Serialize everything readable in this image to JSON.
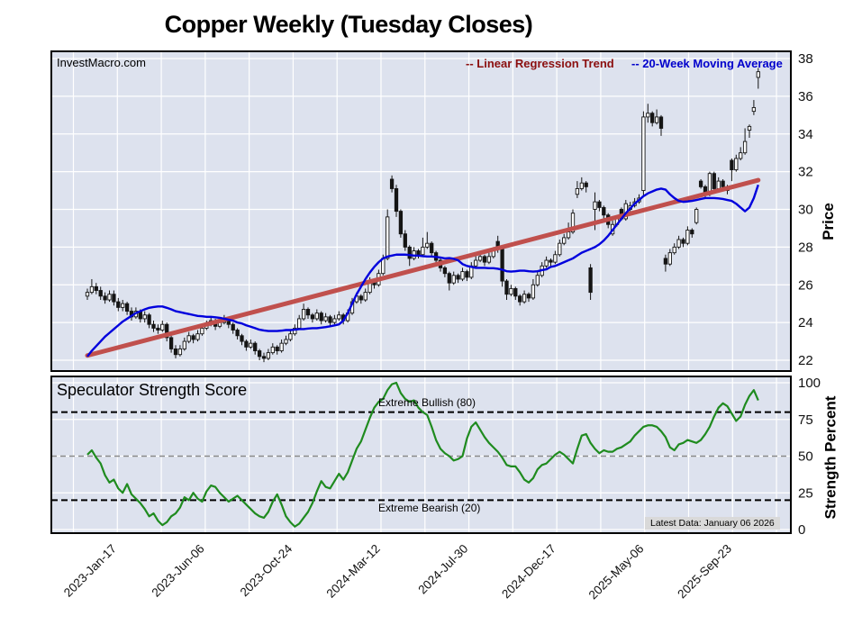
{
  "title": "Copper Weekly (Tuesday Closes)",
  "watermark": "InvestMacro.com",
  "legend": {
    "regression_label": "-- Linear Regression Trend",
    "regression_color": "#8b0f0f",
    "ma_label": "-- 20-Week Moving Average",
    "ma_color": "#0000cc"
  },
  "price_axis": {
    "label": "Price",
    "ticks": [
      22,
      24,
      26,
      28,
      30,
      32,
      34,
      36,
      38
    ]
  },
  "strength_axis": {
    "label": "Strength Percent",
    "ticks": [
      0,
      25,
      50,
      75,
      100
    ]
  },
  "strength_panel": {
    "title": "Speculator Strength Score",
    "bullish_label": "Extreme Bullish (80)",
    "bearish_label": "Extreme Bearish (20)"
  },
  "footnote": "Latest Data: January 06 2026",
  "colors": {
    "panel_bg": "#dde2ee",
    "grid": "#ffffff",
    "regression_line": "#c0504d",
    "ma_line": "#0000dd",
    "strength_line": "#1f8b1f",
    "candle_dark": "#141414",
    "candle_light": "#ffffff",
    "threshold_dash": "#000000",
    "mid_dash": "#8a8a8a",
    "tick_text": "#111111"
  },
  "chart_data": {
    "type": "candlestick",
    "title": "Copper Weekly (Tuesday Closes)",
    "x_tick_labels": [
      "2023-Jan-17",
      "2023-Jun-06",
      "2023-Oct-24",
      "2024-Mar-12",
      "2024-Jul-30",
      "2024-Dec-17",
      "2025-May-06",
      "2025-Sep-23"
    ],
    "price_ticks": [
      22,
      24,
      26,
      28,
      30,
      32,
      34,
      36,
      38
    ],
    "price_ylim": [
      21.4,
      38.4
    ],
    "ohlc_note": "weekly Tuesday-close candles, oldest to latest [open,high,low,close]",
    "ohlc": [
      [
        25.4,
        25.8,
        25.2,
        25.6
      ],
      [
        25.6,
        26.3,
        25.5,
        25.9
      ],
      [
        25.9,
        26.1,
        25.5,
        25.7
      ],
      [
        25.7,
        25.9,
        25.2,
        25.4
      ],
      [
        25.4,
        25.6,
        25.0,
        25.2
      ],
      [
        25.2,
        25.7,
        25.1,
        25.5
      ],
      [
        25.5,
        25.7,
        24.9,
        25.1
      ],
      [
        25.1,
        25.3,
        24.6,
        24.8
      ],
      [
        24.8,
        25.2,
        24.6,
        25.0
      ],
      [
        25.0,
        25.1,
        24.4,
        24.6
      ],
      [
        24.6,
        24.8,
        24.1,
        24.3
      ],
      [
        24.3,
        24.8,
        24.2,
        24.6
      ],
      [
        24.6,
        24.7,
        24.0,
        24.2
      ],
      [
        24.2,
        24.6,
        24.0,
        24.4
      ],
      [
        24.4,
        24.5,
        23.7,
        23.9
      ],
      [
        23.9,
        24.1,
        23.5,
        23.7
      ],
      [
        23.7,
        23.9,
        23.4,
        23.6
      ],
      [
        23.6,
        24.1,
        23.5,
        23.9
      ],
      [
        23.9,
        24.0,
        23.0,
        23.2
      ],
      [
        23.2,
        23.3,
        22.4,
        22.6
      ],
      [
        22.6,
        22.8,
        22.1,
        22.3
      ],
      [
        22.3,
        22.8,
        22.2,
        22.6
      ],
      [
        22.6,
        23.2,
        22.5,
        23.0
      ],
      [
        23.0,
        23.5,
        22.9,
        23.3
      ],
      [
        23.3,
        23.4,
        22.9,
        23.1
      ],
      [
        23.1,
        23.6,
        23.0,
        23.4
      ],
      [
        23.4,
        23.9,
        23.3,
        23.7
      ],
      [
        23.7,
        24.1,
        23.6,
        23.9
      ],
      [
        23.9,
        24.3,
        23.8,
        24.1
      ],
      [
        24.1,
        24.2,
        23.6,
        23.8
      ],
      [
        23.8,
        24.2,
        23.7,
        24.0
      ],
      [
        24.0,
        24.4,
        23.9,
        24.2
      ],
      [
        24.2,
        24.3,
        23.7,
        23.9
      ],
      [
        23.9,
        24.0,
        23.4,
        23.6
      ],
      [
        23.6,
        23.7,
        23.1,
        23.3
      ],
      [
        23.3,
        23.4,
        22.8,
        23.0
      ],
      [
        23.0,
        23.1,
        22.5,
        22.7
      ],
      [
        22.7,
        23.1,
        22.6,
        22.9
      ],
      [
        22.9,
        23.0,
        22.3,
        22.5
      ],
      [
        22.5,
        22.6,
        22.0,
        22.2
      ],
      [
        22.2,
        22.4,
        21.9,
        22.1
      ],
      [
        22.1,
        22.6,
        22.0,
        22.4
      ],
      [
        22.4,
        22.9,
        22.3,
        22.7
      ],
      [
        22.7,
        22.8,
        22.3,
        22.5
      ],
      [
        22.5,
        23.1,
        22.4,
        22.9
      ],
      [
        22.9,
        23.3,
        22.8,
        23.1
      ],
      [
        23.1,
        23.6,
        23.0,
        23.4
      ],
      [
        23.4,
        23.9,
        23.3,
        23.7
      ],
      [
        23.7,
        24.4,
        23.6,
        24.2
      ],
      [
        24.2,
        25.0,
        24.1,
        24.7
      ],
      [
        24.7,
        24.8,
        24.2,
        24.4
      ],
      [
        24.4,
        24.5,
        24.0,
        24.2
      ],
      [
        24.2,
        24.7,
        24.1,
        24.5
      ],
      [
        24.5,
        24.6,
        23.9,
        24.1
      ],
      [
        24.1,
        24.5,
        24.0,
        24.3
      ],
      [
        24.3,
        24.4,
        23.8,
        24.0
      ],
      [
        24.0,
        24.4,
        23.9,
        24.2
      ],
      [
        24.2,
        24.6,
        24.1,
        24.4
      ],
      [
        24.4,
        24.5,
        23.9,
        24.1
      ],
      [
        24.1,
        24.7,
        24.0,
        24.5
      ],
      [
        24.5,
        25.3,
        24.4,
        25.1
      ],
      [
        25.1,
        25.6,
        25.0,
        25.4
      ],
      [
        25.4,
        25.5,
        25.0,
        25.2
      ],
      [
        25.2,
        25.8,
        25.1,
        25.6
      ],
      [
        25.6,
        26.4,
        25.5,
        26.2
      ],
      [
        26.2,
        26.3,
        25.8,
        26.0
      ],
      [
        26.0,
        26.8,
        25.9,
        26.6
      ],
      [
        26.6,
        27.6,
        26.5,
        27.4
      ],
      [
        27.4,
        30.0,
        27.3,
        29.6
      ],
      [
        31.6,
        31.8,
        30.9,
        31.1
      ],
      [
        31.1,
        31.3,
        29.6,
        29.9
      ],
      [
        29.9,
        30.0,
        28.5,
        28.7
      ],
      [
        28.7,
        28.9,
        27.8,
        28.0
      ],
      [
        28.0,
        28.1,
        27.0,
        27.4
      ],
      [
        27.4,
        28.0,
        27.3,
        27.8
      ],
      [
        27.8,
        27.9,
        27.4,
        27.6
      ],
      [
        27.6,
        28.5,
        27.5,
        28.0
      ],
      [
        28.0,
        28.8,
        27.9,
        28.2
      ],
      [
        28.2,
        28.3,
        27.5,
        27.7
      ],
      [
        27.7,
        27.8,
        27.1,
        27.3
      ],
      [
        27.3,
        27.4,
        26.7,
        26.9
      ],
      [
        26.9,
        27.0,
        26.4,
        26.6
      ],
      [
        26.6,
        26.7,
        25.7,
        26.1
      ],
      [
        26.1,
        26.7,
        26.0,
        26.5
      ],
      [
        26.5,
        26.6,
        26.1,
        26.3
      ],
      [
        26.3,
        26.9,
        26.2,
        26.7
      ],
      [
        26.7,
        26.8,
        26.2,
        26.4
      ],
      [
        26.4,
        27.2,
        26.3,
        27.0
      ],
      [
        27.0,
        27.7,
        26.9,
        27.3
      ],
      [
        27.3,
        27.8,
        27.2,
        27.5
      ],
      [
        27.5,
        27.6,
        27.0,
        27.2
      ],
      [
        27.2,
        27.7,
        27.1,
        27.5
      ],
      [
        27.5,
        28.0,
        27.4,
        27.8
      ],
      [
        28.3,
        28.6,
        27.7,
        27.9
      ],
      [
        27.9,
        28.0,
        25.9,
        26.2
      ],
      [
        26.2,
        26.3,
        25.2,
        25.5
      ],
      [
        25.5,
        26.0,
        25.4,
        25.8
      ],
      [
        25.8,
        25.9,
        25.2,
        25.4
      ],
      [
        25.4,
        25.5,
        24.9,
        25.1
      ],
      [
        25.1,
        25.7,
        25.0,
        25.5
      ],
      [
        25.5,
        25.6,
        25.1,
        25.3
      ],
      [
        25.3,
        26.3,
        25.2,
        26.0
      ],
      [
        26.0,
        26.7,
        25.9,
        26.5
      ],
      [
        26.5,
        27.2,
        26.4,
        27.0
      ],
      [
        27.0,
        27.5,
        26.9,
        27.3
      ],
      [
        27.3,
        27.4,
        27.0,
        27.2
      ],
      [
        27.2,
        27.8,
        27.1,
        27.6
      ],
      [
        27.6,
        28.4,
        27.5,
        28.2
      ],
      [
        28.2,
        28.7,
        28.1,
        28.5
      ],
      [
        28.5,
        29.3,
        28.4,
        28.8
      ],
      [
        28.8,
        30.0,
        28.7,
        29.8
      ],
      [
        30.8,
        31.5,
        30.6,
        31.1
      ],
      [
        31.1,
        31.7,
        31.0,
        31.4
      ],
      [
        31.4,
        31.5,
        30.9,
        31.2
      ],
      [
        26.9,
        27.1,
        25.2,
        25.6
      ],
      [
        30.0,
        30.9,
        28.9,
        30.4
      ],
      [
        30.4,
        30.5,
        29.9,
        30.1
      ],
      [
        30.1,
        30.2,
        29.5,
        29.7
      ],
      [
        29.7,
        29.8,
        29.0,
        29.2
      ],
      [
        28.7,
        29.4,
        28.6,
        29.2
      ],
      [
        29.2,
        29.7,
        29.1,
        29.5
      ],
      [
        30.0,
        30.1,
        29.4,
        29.5
      ],
      [
        29.5,
        30.5,
        29.4,
        30.3
      ],
      [
        30.0,
        30.4,
        29.9,
        30.2
      ],
      [
        30.2,
        30.6,
        30.1,
        30.4
      ],
      [
        30.4,
        30.8,
        30.3,
        30.6
      ],
      [
        31.0,
        35.2,
        30.7,
        34.9
      ],
      [
        34.9,
        35.6,
        34.6,
        35.1
      ],
      [
        35.1,
        35.2,
        34.4,
        34.6
      ],
      [
        34.6,
        35.3,
        34.5,
        34.9
      ],
      [
        34.9,
        35.0,
        33.9,
        34.3
      ],
      [
        27.4,
        27.6,
        26.7,
        27.1
      ],
      [
        27.1,
        27.9,
        27.0,
        27.7
      ],
      [
        27.7,
        28.2,
        27.6,
        28.0
      ],
      [
        28.0,
        28.6,
        27.9,
        28.4
      ],
      [
        28.4,
        28.5,
        28.0,
        28.2
      ],
      [
        28.2,
        29.1,
        28.1,
        28.9
      ],
      [
        28.9,
        29.0,
        28.5,
        28.7
      ],
      [
        29.3,
        30.1,
        29.2,
        30.0
      ],
      [
        31.5,
        31.6,
        31.1,
        31.2
      ],
      [
        31.2,
        31.3,
        30.6,
        30.8
      ],
      [
        30.8,
        32.0,
        30.7,
        31.9
      ],
      [
        31.9,
        32.0,
        30.9,
        31.1
      ],
      [
        31.1,
        31.7,
        31.0,
        31.5
      ],
      [
        31.5,
        31.6,
        31.1,
        31.2
      ],
      [
        31.2,
        31.3,
        30.8,
        31.0
      ],
      [
        32.6,
        32.7,
        31.5,
        32.1
      ],
      [
        32.1,
        32.9,
        32.0,
        32.7
      ],
      [
        32.7,
        33.3,
        32.6,
        33.0
      ],
      [
        33.0,
        34.3,
        32.9,
        33.6
      ],
      [
        34.2,
        34.5,
        33.8,
        34.4
      ],
      [
        35.2,
        35.8,
        35.0,
        35.4
      ],
      [
        37.0,
        37.5,
        36.4,
        37.3
      ]
    ],
    "ma20": [
      22.2,
      22.5,
      22.75,
      23.0,
      23.25,
      23.45,
      23.65,
      23.85,
      24.05,
      24.2,
      24.35,
      24.5,
      24.6,
      24.7,
      24.78,
      24.82,
      24.85,
      24.85,
      24.78,
      24.7,
      24.6,
      24.55,
      24.5,
      24.45,
      24.4,
      24.35,
      24.33,
      24.3,
      24.3,
      24.28,
      24.25,
      24.2,
      24.15,
      24.1,
      24.0,
      23.95,
      23.85,
      23.78,
      23.7,
      23.62,
      23.58,
      23.55,
      23.55,
      23.55,
      23.57,
      23.6,
      23.6,
      23.62,
      23.65,
      23.65,
      23.68,
      23.7,
      23.7,
      23.73,
      23.76,
      23.8,
      23.85,
      23.9,
      24.1,
      24.5,
      25.0,
      25.5,
      25.9,
      26.3,
      26.65,
      26.95,
      27.2,
      27.4,
      27.5,
      27.55,
      27.6,
      27.6,
      27.6,
      27.58,
      27.55,
      27.55,
      27.52,
      27.5,
      27.5,
      27.48,
      27.45,
      27.4,
      27.42,
      27.38,
      27.3,
      27.1,
      27.0,
      26.95,
      26.9,
      26.9,
      26.9,
      26.88,
      26.88,
      26.85,
      26.8,
      26.72,
      26.7,
      26.72,
      26.75,
      26.75,
      26.72,
      26.7,
      26.72,
      26.78,
      26.82,
      26.95,
      27.0,
      27.1,
      27.2,
      27.3,
      27.4,
      27.55,
      27.7,
      27.8,
      27.9,
      28.0,
      28.15,
      28.35,
      28.6,
      28.9,
      29.2,
      29.5,
      29.8,
      30.05,
      30.3,
      30.5,
      30.7,
      30.85,
      30.95,
      31.05,
      31.1,
      31.05,
      30.8,
      30.6,
      30.45,
      30.4,
      30.42,
      30.45,
      30.5,
      30.55,
      30.6,
      30.6,
      30.6,
      30.58,
      30.55,
      30.5,
      30.45,
      30.3,
      30.1,
      29.9,
      30.1,
      30.6,
      31.3
    ],
    "regression_trend": {
      "start_price": 22.25,
      "end_price": 31.55
    },
    "strength": {
      "name": "Speculator Strength Score",
      "range": [
        0,
        100
      ],
      "ticks": [
        0,
        25,
        50,
        75,
        100
      ],
      "thresholds": {
        "extreme_bullish": 80,
        "midline": 50,
        "extreme_bearish": 20
      },
      "values": [
        51,
        54,
        49,
        45,
        37,
        32,
        34,
        28,
        25,
        31,
        24,
        21,
        18,
        14,
        9,
        11,
        6,
        3,
        5,
        9,
        11,
        15,
        22,
        20,
        25,
        21,
        19,
        26,
        30,
        29,
        25,
        22,
        19,
        21,
        23,
        20,
        17,
        14,
        11,
        9,
        8,
        12,
        19,
        24,
        17,
        9,
        5,
        2,
        4,
        8,
        12,
        18,
        26,
        33,
        29,
        28,
        33,
        38,
        34,
        39,
        47,
        55,
        60,
        68,
        76,
        83,
        87,
        89,
        95,
        99,
        100,
        93,
        89,
        87,
        88,
        83,
        80,
        78,
        70,
        61,
        55,
        52,
        50,
        47,
        48,
        50,
        62,
        70,
        73,
        68,
        63,
        59,
        56,
        53,
        49,
        44,
        43,
        43,
        39,
        34,
        32,
        35,
        41,
        44,
        45,
        48,
        51,
        53,
        51,
        48,
        45,
        55,
        64,
        65,
        59,
        55,
        52,
        54,
        53,
        53,
        55,
        56,
        58,
        60,
        64,
        67,
        70,
        71,
        71,
        70,
        67,
        63,
        56,
        54,
        58,
        59,
        61,
        60,
        59,
        61,
        65,
        70,
        77,
        83,
        86,
        84,
        79,
        74,
        77,
        85,
        91,
        95,
        88
      ]
    }
  }
}
